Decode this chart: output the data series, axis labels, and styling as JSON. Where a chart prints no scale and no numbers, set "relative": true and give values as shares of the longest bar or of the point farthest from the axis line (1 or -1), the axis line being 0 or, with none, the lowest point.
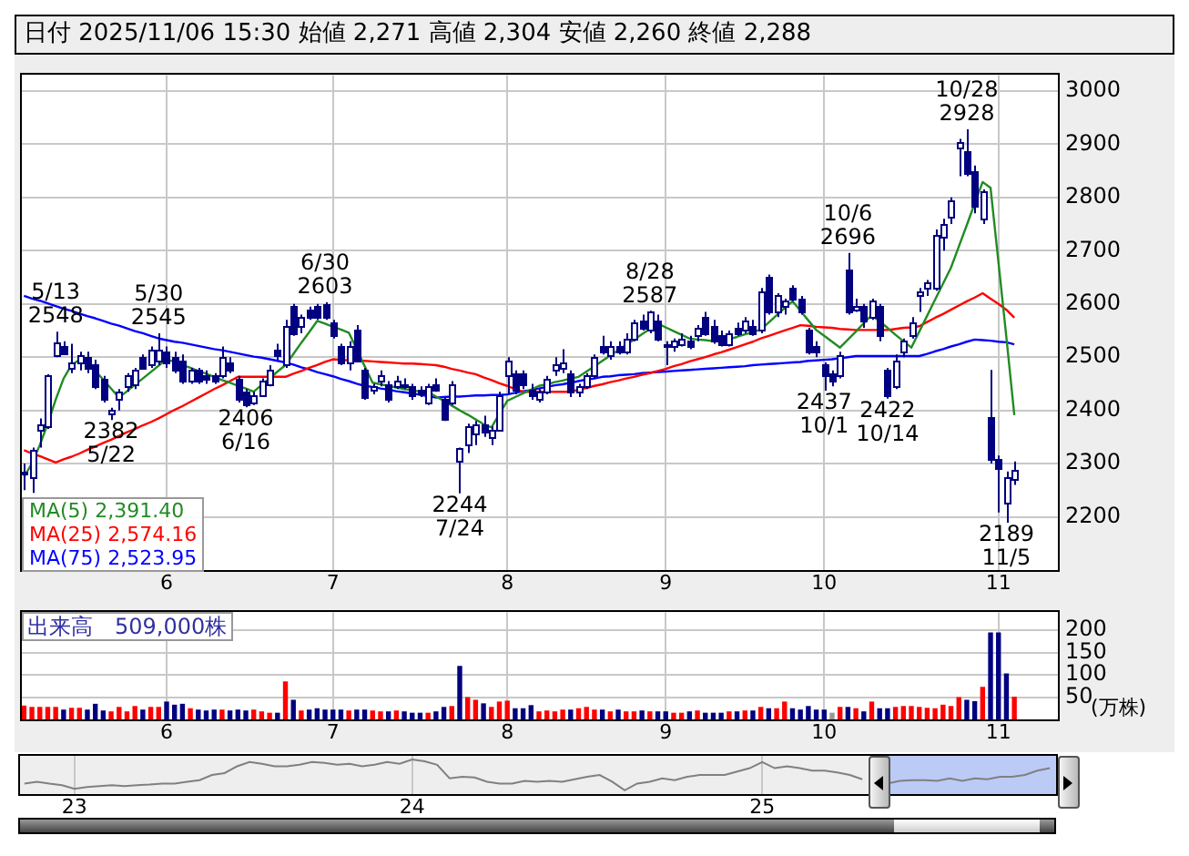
{
  "chart_data": [
    {
      "type": "candlestick",
      "title": "日付 2025/11/06 15:30 始値 2,271 高値 2,304 安値 2,260 終値 2,288",
      "color": "#000080",
      "grid": true,
      "legend": "bottom left",
      "ylim": [
        2100,
        3030
      ],
      "yticks": [
        2200,
        2300,
        2400,
        2500,
        2600,
        2700,
        2800,
        2900,
        3000
      ],
      "categories": [
        null,
        null,
        null,
        null,
        null,
        null,
        null,
        null,
        null,
        null,
        null,
        null,
        null,
        null,
        null,
        null,
        null,
        null,
        "6",
        null,
        null,
        null,
        null,
        null,
        null,
        null,
        null,
        null,
        null,
        null,
        null,
        null,
        null,
        null,
        null,
        null,
        null,
        null,
        null,
        "7",
        null,
        null,
        null,
        null,
        null,
        null,
        null,
        null,
        null,
        null,
        null,
        null,
        null,
        null,
        null,
        null,
        null,
        null,
        null,
        null,
        null,
        "8",
        null,
        null,
        null,
        null,
        null,
        null,
        null,
        null,
        null,
        null,
        null,
        null,
        null,
        null,
        null,
        null,
        null,
        null,
        null,
        "9",
        null,
        null,
        null,
        null,
        null,
        null,
        null,
        null,
        null,
        null,
        null,
        null,
        null,
        null,
        null,
        null,
        null,
        null,
        null,
        "10",
        null,
        null,
        null,
        null,
        null,
        null,
        null,
        null,
        null,
        null,
        null,
        null,
        null,
        null,
        null,
        null,
        null,
        null,
        null,
        null,
        null,
        "11",
        null,
        null,
        null,
        null,
        null,
        null,
        null
      ],
      "ohlc": [
        [
          2280,
          2300,
          2250,
          2285
        ],
        [
          2275,
          2330,
          2245,
          2325
        ],
        [
          2365,
          2385,
          2330,
          2375
        ],
        [
          2370,
          2468,
          2365,
          2465
        ],
        [
          2505,
          2548,
          2500,
          2527
        ],
        [
          2522,
          2530,
          2505,
          2507
        ],
        [
          2480,
          2525,
          2470,
          2490
        ],
        [
          2490,
          2510,
          2475,
          2505
        ],
        [
          2500,
          2510,
          2470,
          2480
        ],
        [
          2485,
          2495,
          2440,
          2445
        ],
        [
          2460,
          2465,
          2415,
          2420
        ],
        [
          2395,
          2405,
          2382,
          2400
        ],
        [
          2420,
          2440,
          2400,
          2435
        ],
        [
          2445,
          2470,
          2435,
          2465
        ],
        [
          2450,
          2480,
          2440,
          2475
        ],
        [
          2500,
          2505,
          2478,
          2480
        ],
        [
          2485,
          2520,
          2480,
          2515
        ],
        [
          2495,
          2545,
          2485,
          2515
        ],
        [
          2510,
          2520,
          2480,
          2490
        ],
        [
          2500,
          2510,
          2470,
          2475
        ],
        [
          2495,
          2505,
          2450,
          2455
        ],
        [
          2455,
          2480,
          2450,
          2475
        ],
        [
          2475,
          2480,
          2450,
          2455
        ],
        [
          2465,
          2475,
          2450,
          2460
        ],
        [
          2465,
          2470,
          2450,
          2455
        ],
        [
          2465,
          2520,
          2460,
          2500
        ],
        [
          2490,
          2500,
          2470,
          2475
        ],
        [
          2460,
          2465,
          2415,
          2420
        ],
        [
          2435,
          2440,
          2406,
          2410
        ],
        [
          2415,
          2435,
          2410,
          2430
        ],
        [
          2430,
          2460,
          2425,
          2455
        ],
        [
          2450,
          2485,
          2445,
          2475
        ],
        [
          2515,
          2525,
          2495,
          2505
        ],
        [
          2485,
          2570,
          2480,
          2560
        ],
        [
          2595,
          2600,
          2540,
          2545
        ],
        [
          2560,
          2580,
          2545,
          2575
        ],
        [
          2588,
          2595,
          2570,
          2575
        ],
        [
          2595,
          2600,
          2570,
          2575
        ],
        [
          2598,
          2603,
          2570,
          2575
        ],
        [
          2565,
          2570,
          2535,
          2540
        ],
        [
          2520,
          2525,
          2485,
          2490
        ],
        [
          2490,
          2530,
          2475,
          2520
        ],
        [
          2550,
          2560,
          2490,
          2495
        ],
        [
          2475,
          2480,
          2420,
          2425
        ],
        [
          2440,
          2450,
          2430,
          2445
        ],
        [
          2455,
          2475,
          2445,
          2465
        ],
        [
          2450,
          2455,
          2415,
          2420
        ],
        [
          2445,
          2465,
          2440,
          2455
        ],
        [
          2450,
          2460,
          2440,
          2445
        ],
        [
          2445,
          2450,
          2420,
          2430
        ],
        [
          2440,
          2445,
          2425,
          2432
        ],
        [
          2415,
          2450,
          2410,
          2445
        ],
        [
          2450,
          2460,
          2435,
          2440
        ],
        [
          2420,
          2425,
          2380,
          2385
        ],
        [
          2415,
          2455,
          2410,
          2450
        ],
        [
          2305,
          2330,
          2244,
          2330
        ],
        [
          2335,
          2375,
          2320,
          2372
        ],
        [
          2355,
          2380,
          2335,
          2375
        ],
        [
          2375,
          2390,
          2350,
          2360
        ],
        [
          2350,
          2370,
          2335,
          2365
        ],
        [
          2365,
          2435,
          2360,
          2430
        ],
        [
          2465,
          2500,
          2430,
          2495
        ],
        [
          2470,
          2475,
          2430,
          2440
        ],
        [
          2470,
          2475,
          2440,
          2450
        ],
        [
          2440,
          2450,
          2420,
          2430
        ],
        [
          2420,
          2440,
          2415,
          2435
        ],
        [
          2435,
          2465,
          2430,
          2460
        ],
        [
          2475,
          2500,
          2465,
          2485
        ],
        [
          2480,
          2515,
          2470,
          2490
        ],
        [
          2470,
          2475,
          2425,
          2435
        ],
        [
          2435,
          2450,
          2425,
          2445
        ],
        [
          2445,
          2470,
          2440,
          2465
        ],
        [
          2465,
          2505,
          2460,
          2500
        ],
        [
          2520,
          2540,
          2505,
          2510
        ],
        [
          2505,
          2530,
          2495,
          2520
        ],
        [
          2520,
          2530,
          2505,
          2510
        ],
        [
          2510,
          2545,
          2505,
          2535
        ],
        [
          2535,
          2570,
          2530,
          2565
        ],
        [
          2570,
          2580,
          2550,
          2555
        ],
        [
          2550,
          2587,
          2545,
          2585
        ],
        [
          2570,
          2580,
          2530,
          2535
        ],
        [
          2525,
          2530,
          2485,
          2520
        ],
        [
          2520,
          2535,
          2510,
          2530
        ],
        [
          2525,
          2545,
          2520,
          2535
        ],
        [
          2530,
          2540,
          2515,
          2520
        ],
        [
          2540,
          2560,
          2530,
          2555
        ],
        [
          2575,
          2585,
          2540,
          2545
        ],
        [
          2560,
          2570,
          2525,
          2530
        ],
        [
          2540,
          2550,
          2520,
          2525
        ],
        [
          2525,
          2550,
          2520,
          2545
        ],
        [
          2555,
          2565,
          2540,
          2545
        ],
        [
          2550,
          2575,
          2545,
          2570
        ],
        [
          2560,
          2570,
          2540,
          2545
        ],
        [
          2550,
          2630,
          2545,
          2625
        ],
        [
          2650,
          2655,
          2580,
          2585
        ],
        [
          2585,
          2620,
          2575,
          2615
        ],
        [
          2595,
          2610,
          2580,
          2605
        ],
        [
          2630,
          2635,
          2605,
          2610
        ],
        [
          2610,
          2615,
          2580,
          2585
        ],
        [
          2550,
          2555,
          2505,
          2510
        ],
        [
          2520,
          2530,
          2500,
          2510
        ],
        [
          2485,
          2490,
          2437,
          2465
        ],
        [
          2470,
          2475,
          2445,
          2455
        ],
        [
          2465,
          2510,
          2460,
          2505
        ],
        [
          2665,
          2696,
          2580,
          2585
        ],
        [
          2590,
          2610,
          2585,
          2595
        ],
        [
          2595,
          2600,
          2555,
          2570
        ],
        [
          2575,
          2610,
          2570,
          2605
        ],
        [
          2595,
          2600,
          2530,
          2540
        ],
        [
          2475,
          2480,
          2422,
          2430
        ],
        [
          2445,
          2505,
          2440,
          2495
        ],
        [
          2510,
          2535,
          2500,
          2530
        ],
        [
          2540,
          2575,
          2535,
          2565
        ],
        [
          2615,
          2630,
          2585,
          2625
        ],
        [
          2630,
          2645,
          2615,
          2640
        ],
        [
          2630,
          2740,
          2625,
          2730
        ],
        [
          2725,
          2760,
          2700,
          2750
        ],
        [
          2765,
          2800,
          2750,
          2795
        ],
        [
          2895,
          2910,
          2840,
          2905
        ],
        [
          2888,
          2928,
          2840,
          2845
        ],
        [
          2850,
          2860,
          2770,
          2785
        ],
        [
          2762,
          2815,
          2750,
          2810
        ],
        [
          2386,
          2476,
          2300,
          2310
        ],
        [
          2308,
          2315,
          2208,
          2290
        ],
        [
          2225,
          2285,
          2189,
          2275
        ],
        [
          2271,
          2304,
          2260,
          2288
        ],
        null,
        null,
        null,
        null,
        null
      ],
      "series": [
        {
          "type": "line",
          "name": "MA(5) 2,391.40",
          "color": "#228b22",
          "values": [
            2275,
            2300,
            2335,
            2375,
            2420,
            2460,
            2485,
            2495,
            2491,
            2474,
            2458,
            2441,
            2424,
            2436,
            2448,
            2460,
            2472,
            2484,
            2496,
            2491,
            2485,
            2480,
            2474,
            2469,
            2463,
            2457,
            2452,
            2446,
            2441,
            2435,
            2448,
            2460,
            2473,
            2485,
            2506,
            2527,
            2547,
            2568,
            2563,
            2557,
            2552,
            2546,
            2515,
            2483,
            2452,
            2449,
            2446,
            2443,
            2440,
            2438,
            2435,
            2435,
            2426,
            2418,
            2409,
            2400,
            2392,
            2383,
            2374,
            2368,
            2393,
            2418,
            2425,
            2432,
            2439,
            2446,
            2449,
            2453,
            2456,
            2460,
            2463,
            2473,
            2483,
            2493,
            2503,
            2513,
            2523,
            2533,
            2543,
            2553,
            2563,
            2556,
            2549,
            2542,
            2535,
            2533,
            2532,
            2530,
            2529,
            2534,
            2538,
            2543,
            2547,
            2552,
            2565,
            2579,
            2592,
            2605,
            2587,
            2569,
            2551,
            2540,
            2529,
            2518,
            2533,
            2548,
            2564,
            2579,
            2567,
            2555,
            2542,
            2530,
            2518,
            2548,
            2578,
            2608,
            2638,
            2668,
            2708,
            2748,
            2789,
            2829,
            2818,
            2678,
            2537,
            2391,
            null,
            null,
            null,
            null,
            null
          ]
        },
        {
          "type": "line",
          "name": "MA(25) 2,574.16",
          "color": "#ff0000",
          "values": [
            2325,
            2319,
            2314,
            2308,
            2302,
            2308,
            2313,
            2319,
            2326,
            2332,
            2339,
            2345,
            2352,
            2359,
            2365,
            2372,
            2378,
            2385,
            2393,
            2401,
            2408,
            2416,
            2424,
            2432,
            2440,
            2447,
            2455,
            2463,
            2463,
            2463,
            2463,
            2463,
            2463,
            2463,
            2469,
            2474,
            2480,
            2485,
            2491,
            2496,
            2495,
            2494,
            2493,
            2493,
            2492,
            2491,
            2490,
            2489,
            2488,
            2488,
            2487,
            2486,
            2485,
            2482,
            2478,
            2475,
            2471,
            2468,
            2462,
            2457,
            2451,
            2446,
            2440,
            2435,
            2435,
            2435,
            2435,
            2435,
            2435,
            2435,
            2439,
            2442,
            2446,
            2449,
            2453,
            2456,
            2460,
            2463,
            2467,
            2470,
            2474,
            2478,
            2483,
            2487,
            2492,
            2496,
            2500,
            2505,
            2509,
            2514,
            2519,
            2524,
            2529,
            2535,
            2540,
            2545,
            2550,
            2555,
            2560,
            2559,
            2557,
            2556,
            2555,
            2553,
            2552,
            2551,
            2551,
            2551,
            2551,
            2551,
            2553,
            2555,
            2556,
            2558,
            2566,
            2574,
            2581,
            2589,
            2597,
            2605,
            2612,
            2620,
            2610,
            2600,
            2589,
            2574,
            null,
            null,
            null,
            null,
            null
          ]
        },
        {
          "type": "line",
          "name": "MA(75) 2,523.95",
          "color": "#0000ff",
          "values": [
            2615,
            2610,
            2606,
            2601,
            2596,
            2591,
            2587,
            2582,
            2577,
            2573,
            2568,
            2563,
            2559,
            2554,
            2549,
            2545,
            2540,
            2535,
            2532,
            2529,
            2527,
            2524,
            2521,
            2518,
            2515,
            2513,
            2510,
            2507,
            2504,
            2501,
            2499,
            2496,
            2493,
            2490,
            2486,
            2481,
            2477,
            2472,
            2468,
            2464,
            2459,
            2455,
            2450,
            2446,
            2444,
            2441,
            2439,
            2436,
            2434,
            2432,
            2429,
            2427,
            2424,
            2425,
            2426,
            2426,
            2427,
            2428,
            2428,
            2429,
            2429,
            2430,
            2433,
            2436,
            2438,
            2441,
            2444,
            2447,
            2449,
            2452,
            2455,
            2458,
            2460,
            2463,
            2464,
            2466,
            2467,
            2468,
            2470,
            2471,
            2472,
            2473,
            2474,
            2475,
            2476,
            2477,
            2478,
            2479,
            2480,
            2481,
            2482,
            2483,
            2485,
            2486,
            2487,
            2488,
            2489,
            2490,
            2491,
            2493,
            2494,
            2495,
            2496,
            2498,
            2500,
            2502,
            2502,
            2502,
            2502,
            2502,
            2502,
            2502,
            2502,
            2502,
            2506,
            2511,
            2515,
            2520,
            2524,
            2529,
            2533,
            2532,
            2531,
            2529,
            2528,
            2524,
            null,
            null,
            null,
            null,
            null
          ]
        }
      ],
      "annotations": [
        {
          "text": "5/13\n2548",
          "y": 2548
        },
        {
          "text": "2382\n5/22",
          "y": 2382
        },
        {
          "text": "5/30\n2545",
          "y": 2545
        },
        {
          "text": "2406\n6/16",
          "y": 2406
        },
        {
          "text": "6/30\n2603",
          "y": 2603
        },
        {
          "text": "2244\n7/24",
          "y": 2244
        },
        {
          "text": "8/28\n2587",
          "y": 2587
        },
        {
          "text": "2437\n10/1",
          "y": 2437
        },
        {
          "text": "10/6\n2696",
          "y": 2696
        },
        {
          "text": "2422\n10/14",
          "y": 2422
        },
        {
          "text": "10/28\n2928",
          "y": 2928
        },
        {
          "text": "2189\n11/5",
          "y": 2189
        }
      ]
    },
    {
      "type": "bar",
      "title": "出来高　509,000株",
      "ylabel": "(万株)",
      "grid": true,
      "ylim": [
        0,
        240
      ],
      "yticks": [
        50,
        100,
        150,
        200
      ],
      "categories": [
        null,
        null,
        null,
        null,
        null,
        null,
        null,
        null,
        null,
        null,
        null,
        null,
        null,
        null,
        null,
        null,
        null,
        null,
        "6",
        null,
        null,
        null,
        null,
        null,
        null,
        null,
        null,
        null,
        null,
        null,
        null,
        null,
        null,
        null,
        null,
        null,
        null,
        null,
        null,
        "7",
        null,
        null,
        null,
        null,
        null,
        null,
        null,
        null,
        null,
        null,
        null,
        null,
        null,
        null,
        null,
        null,
        null,
        null,
        null,
        null,
        null,
        "8",
        null,
        null,
        null,
        null,
        null,
        null,
        null,
        null,
        null,
        null,
        null,
        null,
        null,
        null,
        null,
        null,
        null,
        null,
        null,
        "9",
        null,
        null,
        null,
        null,
        null,
        null,
        null,
        null,
        null,
        null,
        null,
        null,
        null,
        null,
        null,
        null,
        null,
        null,
        null,
        "10",
        null,
        null,
        null,
        null,
        null,
        null,
        null,
        null,
        null,
        null,
        null,
        null,
        null,
        null,
        null,
        null,
        null,
        null,
        null,
        null,
        null,
        "11",
        null,
        null,
        null,
        null,
        null,
        null,
        null
      ],
      "values": [
        31,
        28,
        28,
        28,
        28,
        22,
        26,
        26,
        22,
        35,
        20,
        18,
        28,
        18,
        30,
        22,
        28,
        28,
        40,
        33,
        35,
        25,
        22,
        20,
        22,
        22,
        20,
        22,
        20,
        22,
        18,
        15,
        15,
        85,
        44,
        20,
        22,
        25,
        22,
        22,
        22,
        20,
        22,
        22,
        20,
        18,
        18,
        20,
        18,
        15,
        15,
        15,
        18,
        28,
        30,
        120,
        50,
        44,
        36,
        28,
        40,
        42,
        25,
        25,
        32,
        18,
        20,
        18,
        22,
        22,
        25,
        28,
        22,
        22,
        18,
        22,
        18,
        18,
        20,
        18,
        18,
        18,
        15,
        15,
        18,
        20,
        15,
        15,
        15,
        18,
        18,
        20,
        20,
        28,
        25,
        25,
        40,
        25,
        22,
        30,
        22,
        22,
        15,
        28,
        28,
        25,
        18,
        40,
        25,
        25,
        28,
        30,
        30,
        28,
        26,
        25,
        33,
        30,
        50,
        44,
        41,
        73,
        195,
        195,
        103,
        51,
        null,
        null,
        null,
        null,
        null
      ],
      "colors": [
        "#ff0000",
        "#ff0000",
        "#ff0000",
        "#ff0000",
        "#ff0000",
        "#000080",
        "#ff0000",
        "#ff0000",
        "#000080",
        "#000080",
        "#000080",
        "#ff0000",
        "#ff0000",
        "#ff0000",
        "#ff0000",
        "#000080",
        "#ff0000",
        "#ff0000",
        "#000080",
        "#000080",
        "#000080",
        "#ff0000",
        "#000080",
        "#000080",
        "#000080",
        "#ff0000",
        "#000080",
        "#000080",
        "#000080",
        "#ff0000",
        "#ff0000",
        "#ff0000",
        "#000080",
        "#ff0000",
        "#000080",
        "#ff0000",
        "#000080",
        "#000080",
        "#000080",
        "#000080",
        "#000080",
        "#ff0000",
        "#000080",
        "#000080",
        "#ff0000",
        "#ff0000",
        "#000080",
        "#ff0000",
        "#000080",
        "#000080",
        "#000080",
        "#ff0000",
        "#000080",
        "#000080",
        "#ff0000",
        "#000080",
        "#ff0000",
        "#ff0000",
        "#000080",
        "#ff0000",
        "#ff0000",
        "#ff0000",
        "#000080",
        "#000080",
        "#000080",
        "#ff0000",
        "#ff0000",
        "#ff0000",
        "#ff0000",
        "#000080",
        "#ff0000",
        "#ff0000",
        "#ff0000",
        "#000080",
        "#ff0000",
        "#000080",
        "#ff0000",
        "#ff0000",
        "#000080",
        "#ff0000",
        "#000080",
        "#000080",
        "#ff0000",
        "#ff0000",
        "#000080",
        "#ff0000",
        "#000080",
        "#000080",
        "#000080",
        "#ff0000",
        "#000080",
        "#ff0000",
        "#000080",
        "#ff0000",
        "#000080",
        "#ff0000",
        "#ff0000",
        "#000080",
        "#000080",
        "#000080",
        "#000080",
        "#000080",
        "#999999",
        "#ff0000",
        "#000080",
        "#ff0000",
        "#000080",
        "#ff0000",
        "#000080",
        "#000080",
        "#ff0000",
        "#ff0000",
        "#ff0000",
        "#ff0000",
        "#ff0000",
        "#ff0000",
        "#ff0000",
        "#ff0000",
        "#ff0000",
        "#000080",
        "#000080",
        "#ff0000",
        "#000080",
        "#000080",
        "#000080",
        "#ff0000",
        "#000080",
        "#000080",
        "#000080",
        "#000080",
        "#000080"
      ]
    },
    {
      "type": "line",
      "relative": true,
      "grid": "x",
      "color": "#808080",
      "categories": [
        null,
        null,
        null,
        null,
        "23",
        null,
        null,
        null,
        null,
        null,
        null,
        null,
        null,
        null,
        null,
        null,
        null,
        null,
        null,
        null,
        null,
        null,
        null,
        null,
        null,
        null,
        null,
        null,
        null,
        null,
        null,
        "24",
        null,
        null,
        null,
        null,
        null,
        null,
        null,
        null,
        null,
        null,
        null,
        null,
        null,
        null,
        null,
        null,
        null,
        null,
        null,
        null,
        null,
        null,
        null,
        null,
        null,
        null,
        null,
        "25",
        null,
        null,
        null,
        null,
        null,
        null,
        null,
        null,
        null,
        null,
        null,
        null,
        null,
        null,
        null,
        null,
        null,
        null,
        null,
        null,
        null,
        null,
        null
      ],
      "values": [
        0.22,
        0.28,
        0.22,
        0.17,
        0.05,
        0.11,
        0.14,
        0.17,
        0.14,
        0.17,
        0.19,
        0.22,
        0.22,
        0.28,
        0.33,
        0.5,
        0.56,
        0.78,
        0.92,
        0.86,
        0.78,
        0.78,
        0.83,
        0.92,
        0.89,
        0.83,
        0.86,
        0.78,
        0.83,
        0.92,
        0.86,
        1.0,
        0.94,
        0.83,
        0.39,
        0.44,
        0.42,
        0.28,
        0.22,
        0.22,
        0.31,
        0.28,
        0.31,
        0.28,
        0.36,
        0.44,
        0.5,
        0.28,
        0,
        0.22,
        0.28,
        0.39,
        0.33,
        0.44,
        0.5,
        0.5,
        0.5,
        0.61,
        0.72,
        0.92,
        0.72,
        0.78,
        0.72,
        0.64,
        0.64,
        0.58,
        0.5,
        0.36,
        null,
        0.22,
        0.31,
        0.33,
        0.33,
        0.31,
        0.39,
        0.31,
        0.39,
        0.36,
        0.44,
        0.44,
        0.5,
        0.64,
        0.72
      ]
    }
  ]
}
